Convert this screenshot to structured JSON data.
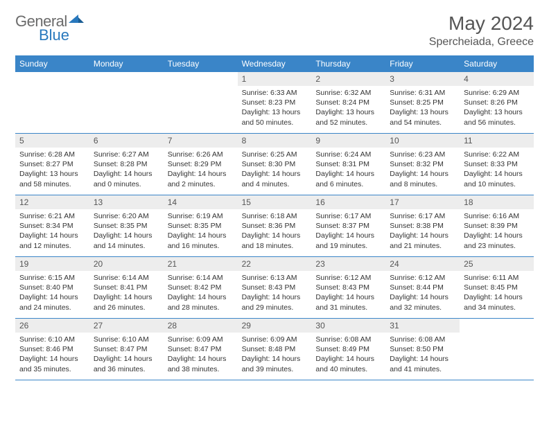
{
  "brand": {
    "part1": "General",
    "part2": "Blue"
  },
  "title": "May 2024",
  "location": "Spercheiada, Greece",
  "colors": {
    "header_bar": "#3a85c8",
    "daynum_bg": "#ededed",
    "rule": "#3a85c8",
    "text": "#333333",
    "title_text": "#555555",
    "logo_gray": "#6b6b6b",
    "logo_blue": "#2878bd",
    "background": "#ffffff"
  },
  "weekdays": [
    "Sunday",
    "Monday",
    "Tuesday",
    "Wednesday",
    "Thursday",
    "Friday",
    "Saturday"
  ],
  "weeks": [
    [
      {
        "empty": true
      },
      {
        "empty": true
      },
      {
        "empty": true
      },
      {
        "num": "1",
        "sunrise": "Sunrise: 6:33 AM",
        "sunset": "Sunset: 8:23 PM",
        "day1": "Daylight: 13 hours",
        "day2": "and 50 minutes."
      },
      {
        "num": "2",
        "sunrise": "Sunrise: 6:32 AM",
        "sunset": "Sunset: 8:24 PM",
        "day1": "Daylight: 13 hours",
        "day2": "and 52 minutes."
      },
      {
        "num": "3",
        "sunrise": "Sunrise: 6:31 AM",
        "sunset": "Sunset: 8:25 PM",
        "day1": "Daylight: 13 hours",
        "day2": "and 54 minutes."
      },
      {
        "num": "4",
        "sunrise": "Sunrise: 6:29 AM",
        "sunset": "Sunset: 8:26 PM",
        "day1": "Daylight: 13 hours",
        "day2": "and 56 minutes."
      }
    ],
    [
      {
        "num": "5",
        "sunrise": "Sunrise: 6:28 AM",
        "sunset": "Sunset: 8:27 PM",
        "day1": "Daylight: 13 hours",
        "day2": "and 58 minutes."
      },
      {
        "num": "6",
        "sunrise": "Sunrise: 6:27 AM",
        "sunset": "Sunset: 8:28 PM",
        "day1": "Daylight: 14 hours",
        "day2": "and 0 minutes."
      },
      {
        "num": "7",
        "sunrise": "Sunrise: 6:26 AM",
        "sunset": "Sunset: 8:29 PM",
        "day1": "Daylight: 14 hours",
        "day2": "and 2 minutes."
      },
      {
        "num": "8",
        "sunrise": "Sunrise: 6:25 AM",
        "sunset": "Sunset: 8:30 PM",
        "day1": "Daylight: 14 hours",
        "day2": "and 4 minutes."
      },
      {
        "num": "9",
        "sunrise": "Sunrise: 6:24 AM",
        "sunset": "Sunset: 8:31 PM",
        "day1": "Daylight: 14 hours",
        "day2": "and 6 minutes."
      },
      {
        "num": "10",
        "sunrise": "Sunrise: 6:23 AM",
        "sunset": "Sunset: 8:32 PM",
        "day1": "Daylight: 14 hours",
        "day2": "and 8 minutes."
      },
      {
        "num": "11",
        "sunrise": "Sunrise: 6:22 AM",
        "sunset": "Sunset: 8:33 PM",
        "day1": "Daylight: 14 hours",
        "day2": "and 10 minutes."
      }
    ],
    [
      {
        "num": "12",
        "sunrise": "Sunrise: 6:21 AM",
        "sunset": "Sunset: 8:34 PM",
        "day1": "Daylight: 14 hours",
        "day2": "and 12 minutes."
      },
      {
        "num": "13",
        "sunrise": "Sunrise: 6:20 AM",
        "sunset": "Sunset: 8:35 PM",
        "day1": "Daylight: 14 hours",
        "day2": "and 14 minutes."
      },
      {
        "num": "14",
        "sunrise": "Sunrise: 6:19 AM",
        "sunset": "Sunset: 8:35 PM",
        "day1": "Daylight: 14 hours",
        "day2": "and 16 minutes."
      },
      {
        "num": "15",
        "sunrise": "Sunrise: 6:18 AM",
        "sunset": "Sunset: 8:36 PM",
        "day1": "Daylight: 14 hours",
        "day2": "and 18 minutes."
      },
      {
        "num": "16",
        "sunrise": "Sunrise: 6:17 AM",
        "sunset": "Sunset: 8:37 PM",
        "day1": "Daylight: 14 hours",
        "day2": "and 19 minutes."
      },
      {
        "num": "17",
        "sunrise": "Sunrise: 6:17 AM",
        "sunset": "Sunset: 8:38 PM",
        "day1": "Daylight: 14 hours",
        "day2": "and 21 minutes."
      },
      {
        "num": "18",
        "sunrise": "Sunrise: 6:16 AM",
        "sunset": "Sunset: 8:39 PM",
        "day1": "Daylight: 14 hours",
        "day2": "and 23 minutes."
      }
    ],
    [
      {
        "num": "19",
        "sunrise": "Sunrise: 6:15 AM",
        "sunset": "Sunset: 8:40 PM",
        "day1": "Daylight: 14 hours",
        "day2": "and 24 minutes."
      },
      {
        "num": "20",
        "sunrise": "Sunrise: 6:14 AM",
        "sunset": "Sunset: 8:41 PM",
        "day1": "Daylight: 14 hours",
        "day2": "and 26 minutes."
      },
      {
        "num": "21",
        "sunrise": "Sunrise: 6:14 AM",
        "sunset": "Sunset: 8:42 PM",
        "day1": "Daylight: 14 hours",
        "day2": "and 28 minutes."
      },
      {
        "num": "22",
        "sunrise": "Sunrise: 6:13 AM",
        "sunset": "Sunset: 8:43 PM",
        "day1": "Daylight: 14 hours",
        "day2": "and 29 minutes."
      },
      {
        "num": "23",
        "sunrise": "Sunrise: 6:12 AM",
        "sunset": "Sunset: 8:43 PM",
        "day1": "Daylight: 14 hours",
        "day2": "and 31 minutes."
      },
      {
        "num": "24",
        "sunrise": "Sunrise: 6:12 AM",
        "sunset": "Sunset: 8:44 PM",
        "day1": "Daylight: 14 hours",
        "day2": "and 32 minutes."
      },
      {
        "num": "25",
        "sunrise": "Sunrise: 6:11 AM",
        "sunset": "Sunset: 8:45 PM",
        "day1": "Daylight: 14 hours",
        "day2": "and 34 minutes."
      }
    ],
    [
      {
        "num": "26",
        "sunrise": "Sunrise: 6:10 AM",
        "sunset": "Sunset: 8:46 PM",
        "day1": "Daylight: 14 hours",
        "day2": "and 35 minutes."
      },
      {
        "num": "27",
        "sunrise": "Sunrise: 6:10 AM",
        "sunset": "Sunset: 8:47 PM",
        "day1": "Daylight: 14 hours",
        "day2": "and 36 minutes."
      },
      {
        "num": "28",
        "sunrise": "Sunrise: 6:09 AM",
        "sunset": "Sunset: 8:47 PM",
        "day1": "Daylight: 14 hours",
        "day2": "and 38 minutes."
      },
      {
        "num": "29",
        "sunrise": "Sunrise: 6:09 AM",
        "sunset": "Sunset: 8:48 PM",
        "day1": "Daylight: 14 hours",
        "day2": "and 39 minutes."
      },
      {
        "num": "30",
        "sunrise": "Sunrise: 6:08 AM",
        "sunset": "Sunset: 8:49 PM",
        "day1": "Daylight: 14 hours",
        "day2": "and 40 minutes."
      },
      {
        "num": "31",
        "sunrise": "Sunrise: 6:08 AM",
        "sunset": "Sunset: 8:50 PM",
        "day1": "Daylight: 14 hours",
        "day2": "and 41 minutes."
      },
      {
        "empty": true
      }
    ]
  ]
}
